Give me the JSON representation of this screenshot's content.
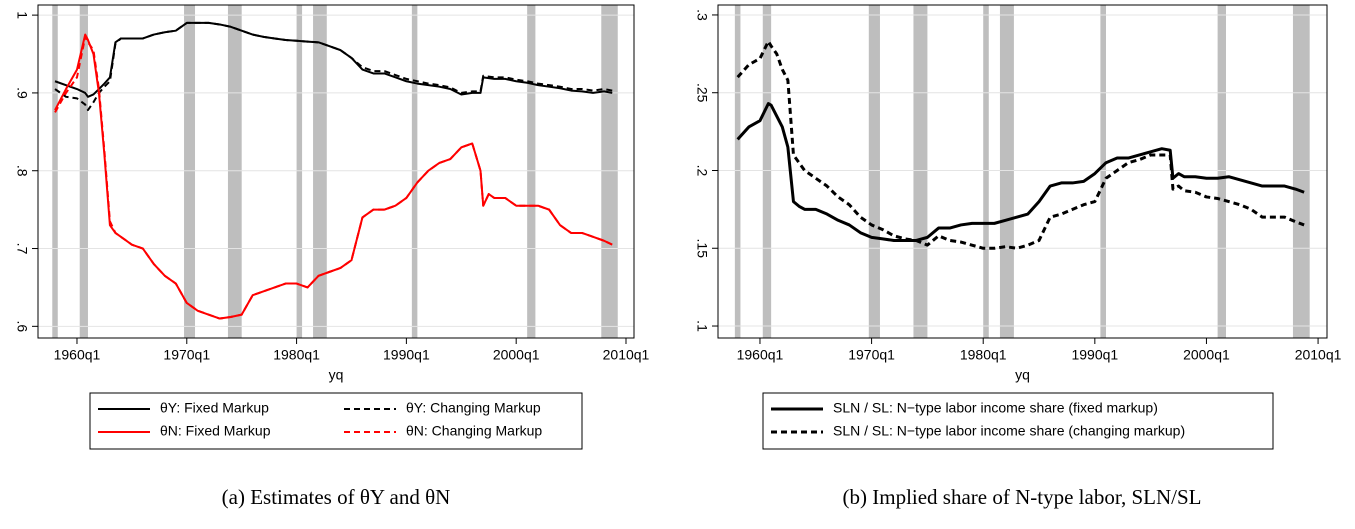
{
  "chart_data": [
    {
      "type": "line",
      "x_label": "yq",
      "caption": "(a) Estimates of θY and θN",
      "x": [
        1958,
        1959,
        1960,
        1960.75,
        1961,
        1961.5,
        1962,
        1962.5,
        1963,
        1963.5,
        1964,
        1965,
        1966,
        1967,
        1968,
        1969,
        1970,
        1971,
        1972,
        1973,
        1974,
        1975,
        1976,
        1977,
        1978,
        1979,
        1980,
        1981,
        1982,
        1983,
        1984,
        1985,
        1986,
        1987,
        1988,
        1989,
        1990,
        1991,
        1992,
        1993,
        1994,
        1995,
        1996,
        1996.75,
        1997,
        1997.5,
        1998,
        1999,
        2000,
        2001,
        2002,
        2003,
        2004,
        2005,
        2006,
        2007,
        2008,
        2008.75
      ],
      "xlim": [
        1956.45,
        2010.73
      ],
      "xticks": [
        {
          "value": 1960,
          "label": "1960q1"
        },
        {
          "value": 1970,
          "label": "1970q1"
        },
        {
          "value": 1980,
          "label": "1980q1"
        },
        {
          "value": 1990,
          "label": "1990q1"
        },
        {
          "value": 2000,
          "label": "2000q1"
        },
        {
          "value": 2010,
          "label": "2010q1"
        }
      ],
      "ylim": [
        0.585,
        1.013
      ],
      "yticks": [
        {
          "value": 0.6,
          "label": ".6"
        },
        {
          "value": 0.7,
          "label": ".7"
        },
        {
          "value": 0.8,
          "label": ".8"
        },
        {
          "value": 0.9,
          "label": ".9"
        },
        1
      ],
      "grid": true,
      "shaded_regions": [
        [
          1957.75,
          1958.25
        ],
        [
          1960.25,
          1961.0
        ],
        [
          1969.75,
          1970.75
        ],
        [
          1973.75,
          1975.0
        ],
        [
          1980.0,
          1980.5
        ],
        [
          1981.5,
          1982.75
        ],
        [
          1990.5,
          1991.0
        ],
        [
          2001.0,
          2001.75
        ],
        [
          2007.75,
          2009.25
        ]
      ],
      "shade_color": "#bebebe",
      "legend": "bottom",
      "legend_columns": 2,
      "series": [
        {
          "name": "θY: Fixed Markup",
          "color": "#000000",
          "dash": false,
          "width": 2,
          "values": [
            0.915,
            0.91,
            0.905,
            0.9,
            0.895,
            0.898,
            0.905,
            0.912,
            0.92,
            0.965,
            0.97,
            0.97,
            0.97,
            0.975,
            0.978,
            0.98,
            0.99,
            0.99,
            0.99,
            0.988,
            0.985,
            0.98,
            0.975,
            0.972,
            0.97,
            0.968,
            0.967,
            0.966,
            0.965,
            0.96,
            0.955,
            0.945,
            0.93,
            0.925,
            0.925,
            0.92,
            0.915,
            0.912,
            0.91,
            0.908,
            0.905,
            0.898,
            0.9,
            0.9,
            0.92,
            0.919,
            0.918,
            0.918,
            0.915,
            0.913,
            0.91,
            0.908,
            0.906,
            0.903,
            0.902,
            0.9,
            0.902,
            0.9
          ]
        },
        {
          "name": "θY: Changing Markup",
          "color": "#000000",
          "dash": true,
          "width": 2,
          "values": [
            0.905,
            0.895,
            0.893,
            0.885,
            0.878,
            0.888,
            0.9,
            0.908,
            0.915,
            0.963,
            0.97,
            0.97,
            0.97,
            0.975,
            0.978,
            0.98,
            0.99,
            0.99,
            0.99,
            0.988,
            0.985,
            0.98,
            0.975,
            0.972,
            0.97,
            0.968,
            0.967,
            0.966,
            0.965,
            0.96,
            0.955,
            0.945,
            0.933,
            0.928,
            0.928,
            0.923,
            0.918,
            0.915,
            0.912,
            0.91,
            0.907,
            0.9,
            0.902,
            0.902,
            0.922,
            0.921,
            0.92,
            0.92,
            0.917,
            0.915,
            0.912,
            0.91,
            0.908,
            0.905,
            0.905,
            0.903,
            0.905,
            0.903
          ]
        },
        {
          "name": "θN: Fixed Markup",
          "color": "#ff0000",
          "dash": false,
          "width": 2,
          "values": [
            0.878,
            0.905,
            0.93,
            0.975,
            0.968,
            0.95,
            0.9,
            0.82,
            0.73,
            0.72,
            0.715,
            0.705,
            0.7,
            0.68,
            0.665,
            0.655,
            0.63,
            0.62,
            0.615,
            0.61,
            0.612,
            0.615,
            0.64,
            0.645,
            0.65,
            0.655,
            0.655,
            0.65,
            0.665,
            0.67,
            0.675,
            0.685,
            0.74,
            0.75,
            0.75,
            0.755,
            0.765,
            0.785,
            0.8,
            0.81,
            0.815,
            0.83,
            0.835,
            0.8,
            0.755,
            0.77,
            0.765,
            0.765,
            0.755,
            0.755,
            0.755,
            0.75,
            0.73,
            0.72,
            0.72,
            0.715,
            0.71,
            0.705
          ]
        },
        {
          "name": "θN: Changing Markup",
          "color": "#ff0000",
          "dash": true,
          "width": 2,
          "values": [
            0.875,
            0.9,
            0.92,
            0.972,
            0.965,
            0.955,
            0.905,
            0.825,
            0.735,
            0.72,
            0.715,
            0.705,
            0.7,
            0.68,
            0.665,
            0.655,
            0.63,
            0.62,
            0.615,
            0.61,
            0.612,
            0.615,
            0.64,
            0.645,
            0.65,
            0.655,
            0.655,
            0.65,
            0.665,
            0.67,
            0.675,
            0.685,
            0.74,
            0.75,
            0.75,
            0.755,
            0.765,
            0.785,
            0.8,
            0.81,
            0.815,
            0.83,
            0.835,
            0.8,
            0.755,
            0.77,
            0.765,
            0.765,
            0.755,
            0.755,
            0.755,
            0.75,
            0.73,
            0.72,
            0.72,
            0.715,
            0.71,
            0.705
          ]
        }
      ]
    },
    {
      "type": "line",
      "x_label": "yq",
      "caption": "(b) Implied share of N-type labor, SLN/SL",
      "x": [
        1958,
        1959,
        1960,
        1960.75,
        1961,
        1961.5,
        1962,
        1962.5,
        1963,
        1963.5,
        1964,
        1965,
        1966,
        1967,
        1968,
        1969,
        1970,
        1971,
        1972,
        1973,
        1974,
        1975,
        1976,
        1977,
        1978,
        1979,
        1980,
        1981,
        1982,
        1983,
        1984,
        1985,
        1986,
        1987,
        1988,
        1989,
        1990,
        1991,
        1992,
        1993,
        1994,
        1995,
        1996,
        1996.75,
        1997,
        1997.5,
        1998,
        1999,
        2000,
        2001,
        2002,
        2003,
        2004,
        2005,
        2006,
        2007,
        2008,
        2008.75
      ],
      "xlim": [
        1956.24,
        2010.8
      ],
      "xticks": [
        {
          "value": 1960,
          "label": "1960q1"
        },
        {
          "value": 1970,
          "label": "1970q1"
        },
        {
          "value": 1980,
          "label": "1980q1"
        },
        {
          "value": 1990,
          "label": "1990q1"
        },
        {
          "value": 2000,
          "label": "2000q1"
        },
        {
          "value": 2010,
          "label": "2010q1"
        }
      ],
      "ylim": [
        0.0923,
        0.3064
      ],
      "yticks": [
        {
          "value": 0.1,
          "label": ".1"
        },
        {
          "value": 0.15,
          "label": ".15"
        },
        {
          "value": 0.2,
          "label": ".2"
        },
        {
          "value": 0.25,
          "label": ".25"
        },
        {
          "value": 0.3,
          "label": ".3"
        }
      ],
      "grid": true,
      "shaded_regions": [
        [
          1957.75,
          1958.25
        ],
        [
          1960.25,
          1961.0
        ],
        [
          1969.75,
          1970.75
        ],
        [
          1973.75,
          1975.0
        ],
        [
          1980.0,
          1980.5
        ],
        [
          1981.5,
          1982.75
        ],
        [
          1990.5,
          1991.0
        ],
        [
          2001.0,
          2001.75
        ],
        [
          2007.75,
          2009.25
        ]
      ],
      "shade_color": "#bebebe",
      "legend": "bottom",
      "legend_columns": 1,
      "series": [
        {
          "name": "SLN / SL: N−type labor income share (fixed markup)",
          "color": "#000000",
          "dash": false,
          "width": 3,
          "values": [
            0.22,
            0.228,
            0.232,
            0.243,
            0.242,
            0.235,
            0.228,
            0.215,
            0.18,
            0.177,
            0.175,
            0.175,
            0.172,
            0.168,
            0.165,
            0.16,
            0.157,
            0.156,
            0.155,
            0.155,
            0.155,
            0.157,
            0.163,
            0.163,
            0.165,
            0.166,
            0.166,
            0.166,
            0.168,
            0.17,
            0.172,
            0.18,
            0.19,
            0.192,
            0.192,
            0.193,
            0.198,
            0.205,
            0.208,
            0.208,
            0.21,
            0.212,
            0.214,
            0.213,
            0.195,
            0.198,
            0.196,
            0.196,
            0.195,
            0.195,
            0.196,
            0.194,
            0.192,
            0.19,
            0.19,
            0.19,
            0.188,
            0.186
          ]
        },
        {
          "name": "SLN / SL: N−type labor income share (changing markup)",
          "color": "#000000",
          "dash": true,
          "width": 3,
          "values": [
            0.26,
            0.268,
            0.272,
            0.283,
            0.28,
            0.275,
            0.265,
            0.258,
            0.21,
            0.205,
            0.2,
            0.195,
            0.19,
            0.183,
            0.178,
            0.17,
            0.165,
            0.162,
            0.158,
            0.156,
            0.155,
            0.152,
            0.158,
            0.155,
            0.154,
            0.152,
            0.15,
            0.15,
            0.151,
            0.15,
            0.152,
            0.155,
            0.17,
            0.172,
            0.175,
            0.178,
            0.18,
            0.195,
            0.2,
            0.205,
            0.207,
            0.21,
            0.21,
            0.21,
            0.188,
            0.19,
            0.187,
            0.186,
            0.183,
            0.182,
            0.18,
            0.178,
            0.175,
            0.17,
            0.17,
            0.17,
            0.167,
            0.165
          ]
        }
      ]
    }
  ]
}
